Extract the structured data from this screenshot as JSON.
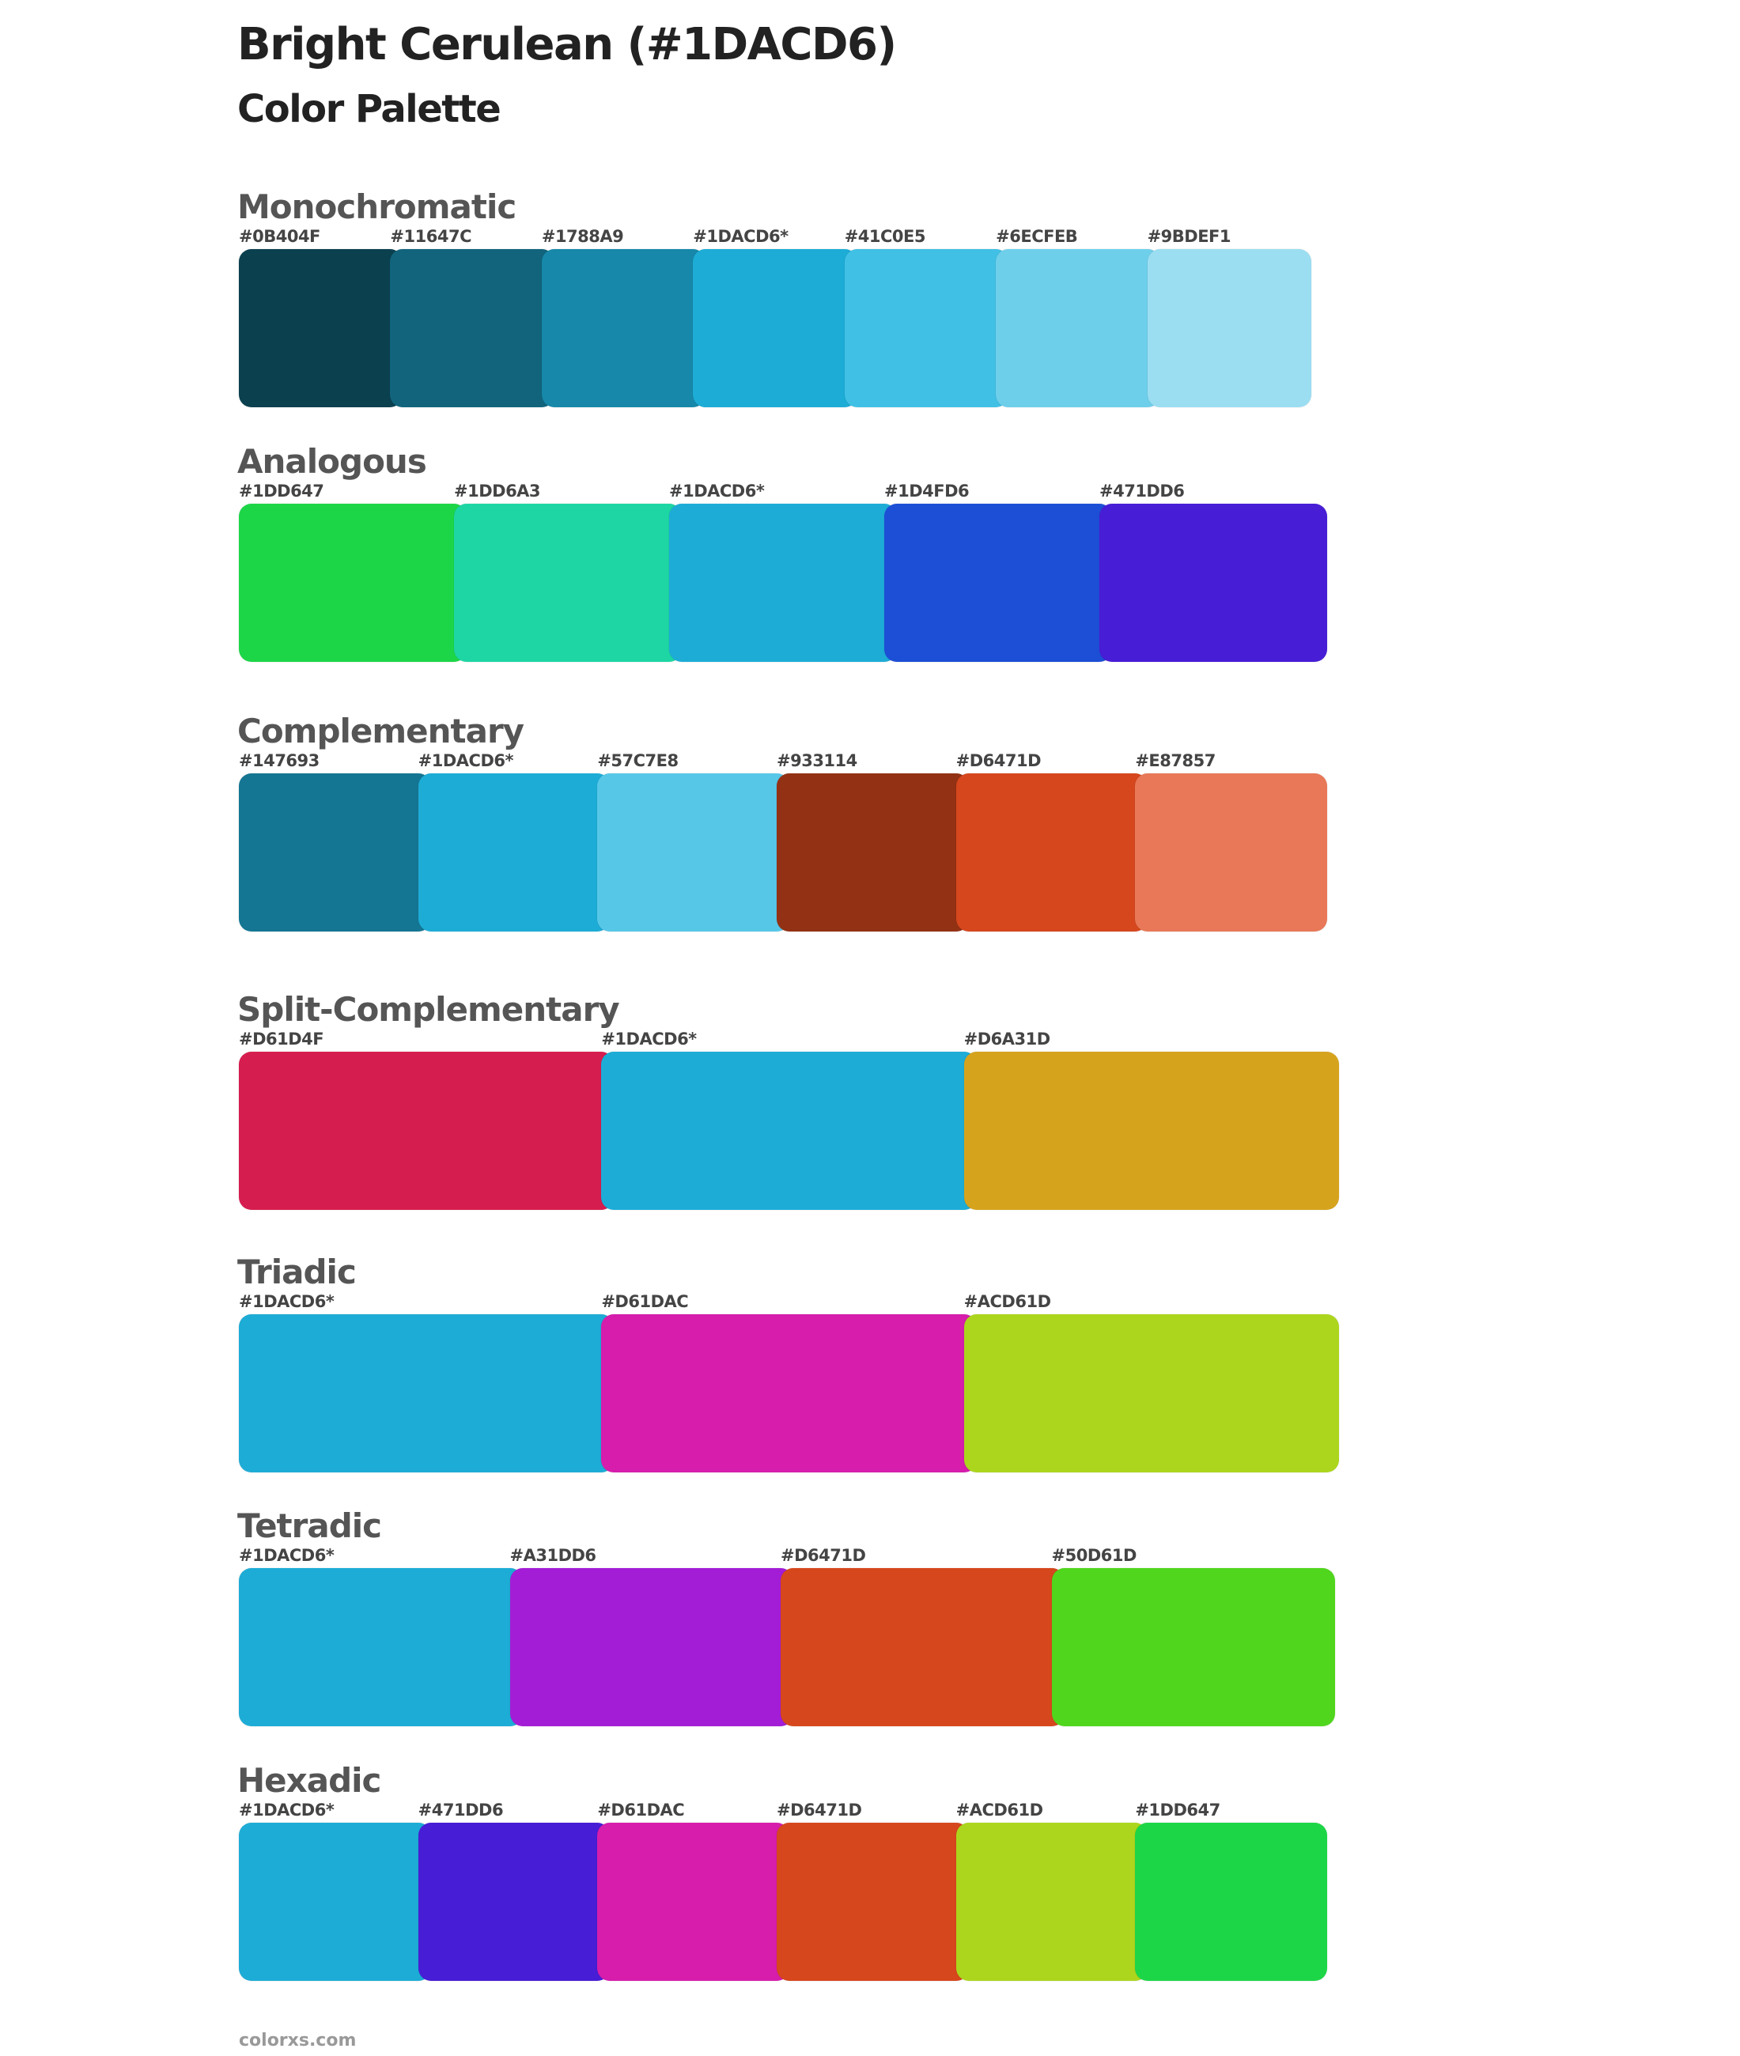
{
  "header": {
    "title": "Bright Cerulean (#1DACD6)",
    "subtitle": "Color Palette"
  },
  "palettes": [
    {
      "name": "Monochromatic",
      "colors": [
        "#0B404F",
        "#11647C",
        "#1788A9",
        "#1DACD6*",
        "#41C0E5",
        "#6ECFEB",
        "#9BDEF1"
      ]
    },
    {
      "name": "Analogous",
      "colors": [
        "#1DD647",
        "#1DD6A3",
        "#1DACD6*",
        "#1D4FD6",
        "#471DD6"
      ]
    },
    {
      "name": "Complementary",
      "colors": [
        "#147693",
        "#1DACD6*",
        "#57C7E8",
        "#933114",
        "#D6471D",
        "#E87857"
      ]
    },
    {
      "name": "Split-Complementary",
      "colors": [
        "#D61D4F",
        "#1DACD6*",
        "#D6A31D"
      ]
    },
    {
      "name": "Triadic",
      "colors": [
        "#1DACD6*",
        "#D61DAC",
        "#ACD61D"
      ]
    },
    {
      "name": "Tetradic",
      "colors": [
        "#1DACD6*",
        "#A31DD6",
        "#D6471D",
        "#50D61D"
      ]
    },
    {
      "name": "Hexadic",
      "colors": [
        "#1DACD6*",
        "#471DD6",
        "#D61DAC",
        "#D6471D",
        "#ACD61D",
        "#1DD647"
      ]
    }
  ],
  "footer": {
    "text": "colorxs.com"
  }
}
